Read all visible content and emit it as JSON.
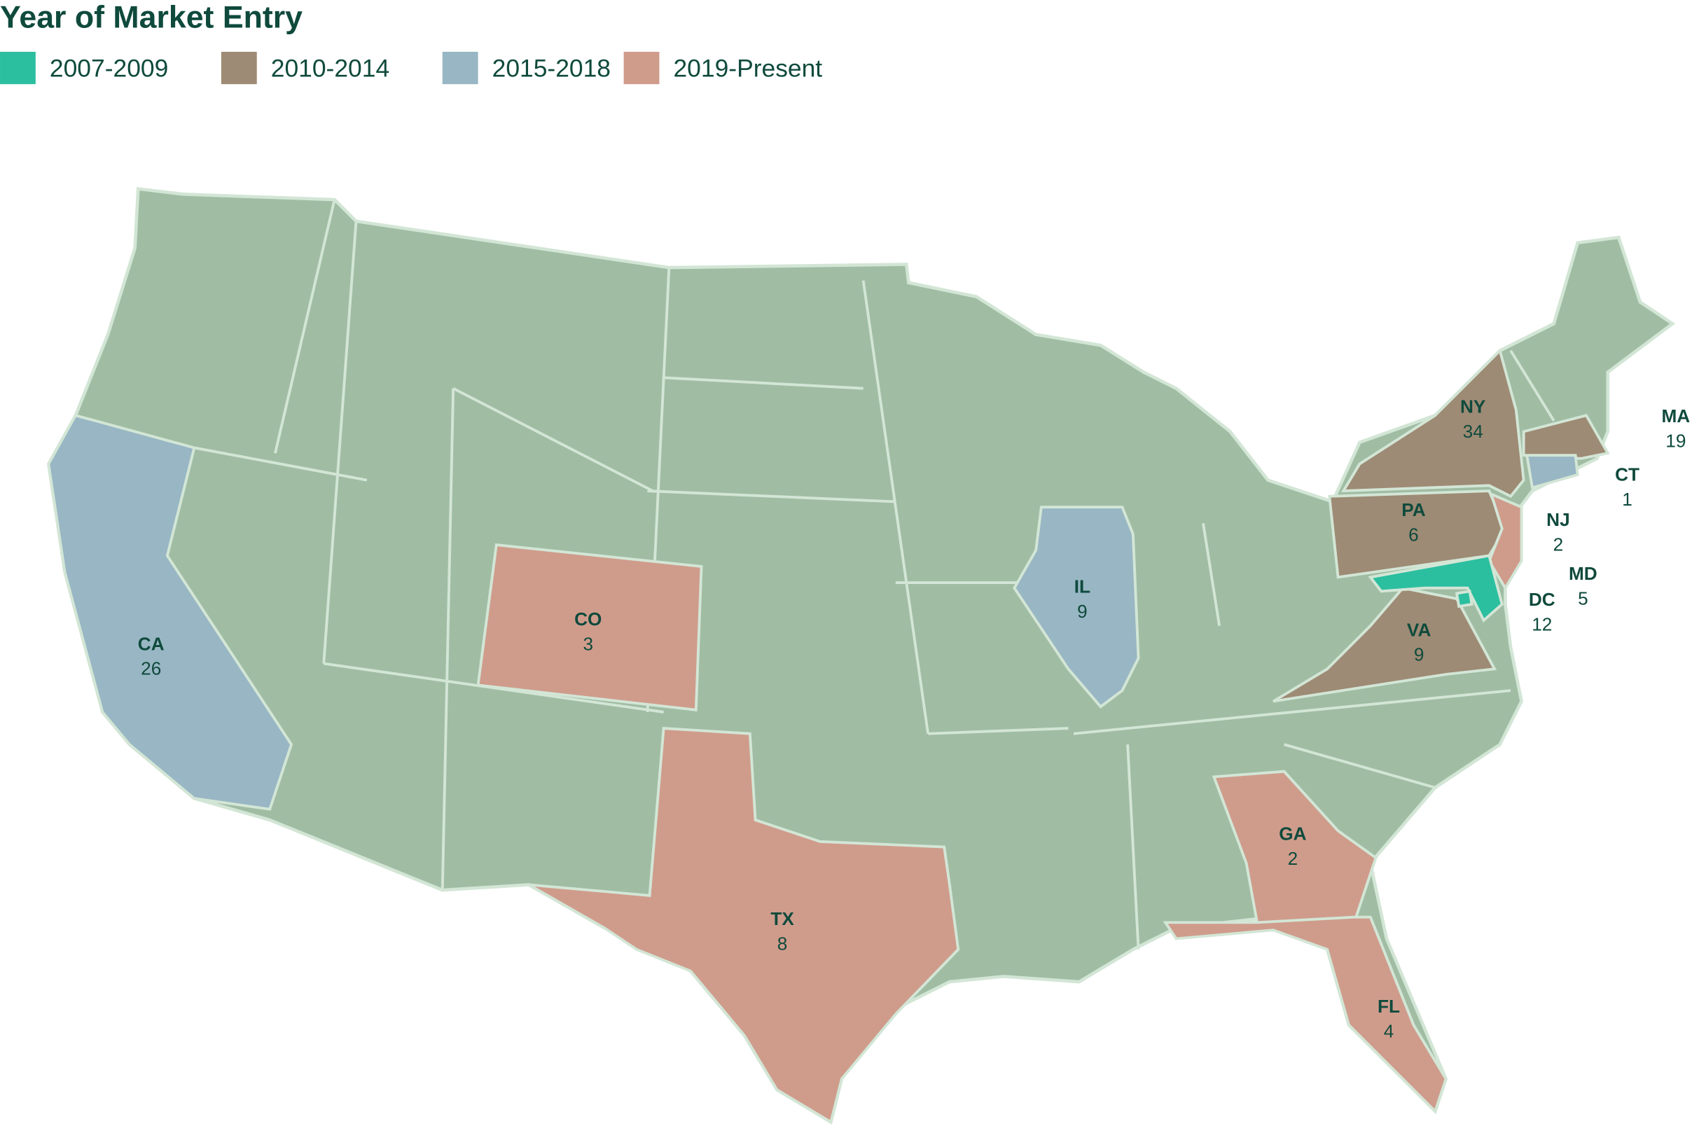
{
  "title": "Year of Market Entry",
  "base_color": "#a0bda4",
  "border_color": "#d3e6d6",
  "legend": [
    {
      "label": "2007-2009",
      "color": "#2bbfa0"
    },
    {
      "label": "2010-2014",
      "color": "#9e8b75"
    },
    {
      "label": "2015-2018",
      "color": "#98b6c3"
    },
    {
      "label": "2019-Present",
      "color": "#cf9c8c"
    }
  ],
  "regions": [
    {
      "abbr": "CA",
      "count": 26,
      "color": "#98b6c3"
    },
    {
      "abbr": "CO",
      "count": 3,
      "color": "#cf9c8c"
    },
    {
      "abbr": "TX",
      "count": 8,
      "color": "#cf9c8c"
    },
    {
      "abbr": "IL",
      "count": 9,
      "color": "#98b6c3"
    },
    {
      "abbr": "NY",
      "count": 34,
      "color": "#9e8b75"
    },
    {
      "abbr": "PA",
      "count": 6,
      "color": "#9e8b75"
    },
    {
      "abbr": "VA",
      "count": 9,
      "color": "#9e8b75"
    },
    {
      "abbr": "GA",
      "count": 2,
      "color": "#cf9c8c"
    },
    {
      "abbr": "FL",
      "count": 4,
      "color": "#cf9c8c"
    },
    {
      "abbr": "MA",
      "count": 19,
      "color": "#9e8b75"
    },
    {
      "abbr": "CT",
      "count": 1,
      "color": "#98b6c3"
    },
    {
      "abbr": "NJ",
      "count": 2,
      "color": "#cf9c8c"
    },
    {
      "abbr": "MD",
      "count": 5,
      "color": "#2bbfa0"
    },
    {
      "abbr": "DC",
      "count": 12,
      "color": "#2bbfa0"
    }
  ]
}
